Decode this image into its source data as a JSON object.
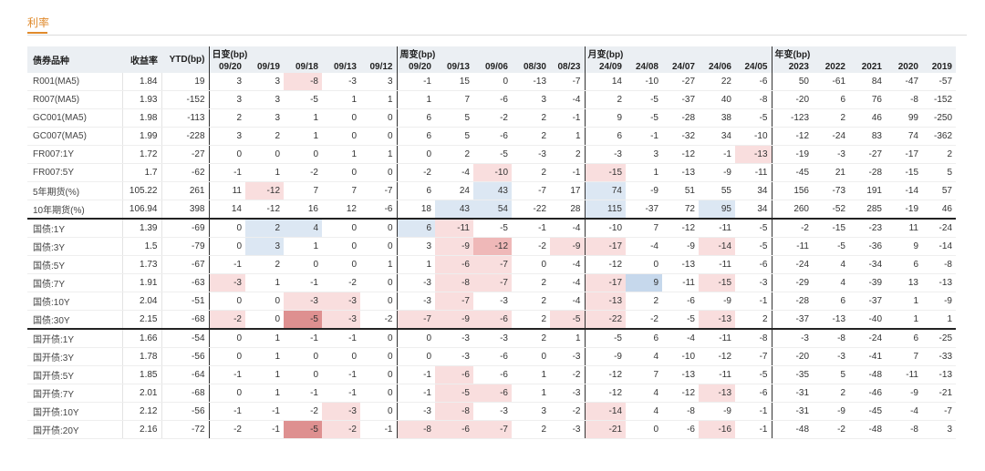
{
  "tab": {
    "label": "利率"
  },
  "headers": {
    "name": "债券品种",
    "yield": "收益率",
    "ytd": "YTD(bp)",
    "groups": [
      {
        "label": "日变(bp)",
        "cols": [
          "09/20",
          "09/19",
          "09/18",
          "09/13",
          "09/12"
        ]
      },
      {
        "label": "周变(bp)",
        "cols": [
          "09/20",
          "09/13",
          "09/06",
          "08/30",
          "08/23"
        ]
      },
      {
        "label": "月变(bp)",
        "cols": [
          "24/09",
          "24/08",
          "24/07",
          "24/06",
          "24/05"
        ]
      },
      {
        "label": "年变(bp)",
        "cols": [
          "2023",
          "2022",
          "2021",
          "2020",
          "2019"
        ]
      }
    ]
  },
  "colors": {
    "neg_light": "#f9dede",
    "neg_mid": "#efb8b8",
    "neg_dark": "#de9090",
    "pos_light": "#dce7f3",
    "pos_mid": "#c6d8ec",
    "accent": "#e08a2c"
  },
  "rows": [
    {
      "name": "R001(MA5)",
      "yield": "1.84",
      "ytd": "19",
      "vals": [
        "3",
        "3",
        "-8",
        "-3",
        "3",
        "-1",
        "15",
        "0",
        "-13",
        "-7",
        "14",
        "-10",
        "-27",
        "22",
        "-6",
        "50",
        "-61",
        "84",
        "-47",
        "-57"
      ],
      "hl": {
        "2": "r1"
      }
    },
    {
      "name": "R007(MA5)",
      "yield": "1.93",
      "ytd": "-152",
      "vals": [
        "3",
        "3",
        "-5",
        "1",
        "1",
        "1",
        "7",
        "-6",
        "3",
        "-4",
        "2",
        "-5",
        "-37",
        "40",
        "-8",
        "-20",
        "6",
        "76",
        "-8",
        "-152"
      ],
      "hl": {}
    },
    {
      "name": "GC001(MA5)",
      "yield": "1.98",
      "ytd": "-113",
      "vals": [
        "2",
        "3",
        "1",
        "0",
        "0",
        "6",
        "5",
        "-2",
        "2",
        "-1",
        "9",
        "-5",
        "-28",
        "38",
        "-5",
        "-123",
        "2",
        "46",
        "99",
        "-250"
      ],
      "hl": {}
    },
    {
      "name": "GC007(MA5)",
      "yield": "1.99",
      "ytd": "-228",
      "vals": [
        "3",
        "2",
        "1",
        "0",
        "0",
        "6",
        "5",
        "-6",
        "2",
        "1",
        "6",
        "-1",
        "-32",
        "34",
        "-10",
        "-12",
        "-24",
        "83",
        "74",
        "-362"
      ],
      "hl": {}
    },
    {
      "name": "FR007:1Y",
      "yield": "1.72",
      "ytd": "-27",
      "vals": [
        "0",
        "0",
        "0",
        "1",
        "1",
        "0",
        "2",
        "-5",
        "-3",
        "2",
        "-3",
        "3",
        "-12",
        "-1",
        "-13",
        "-19",
        "-3",
        "-27",
        "-17",
        "2"
      ],
      "hl": {
        "14": "r1"
      }
    },
    {
      "name": "FR007:5Y",
      "yield": "1.7",
      "ytd": "-62",
      "vals": [
        "-1",
        "1",
        "-2",
        "0",
        "0",
        "-2",
        "-4",
        "-10",
        "2",
        "-1",
        "-15",
        "1",
        "-13",
        "-9",
        "-11",
        "-45",
        "21",
        "-28",
        "-15",
        "5"
      ],
      "hl": {
        "7": "r1",
        "10": "r1"
      }
    },
    {
      "name": "5年期货(%)",
      "yield": "105.22",
      "ytd": "261",
      "vals": [
        "11",
        "-12",
        "7",
        "7",
        "-7",
        "6",
        "24",
        "43",
        "-7",
        "17",
        "74",
        "-9",
        "51",
        "55",
        "34",
        "156",
        "-73",
        "191",
        "-14",
        "57"
      ],
      "hl": {
        "1": "r1",
        "7": "b1",
        "10": "b1"
      }
    },
    {
      "name": "10年期货(%)",
      "yield": "106.94",
      "ytd": "398",
      "vals": [
        "14",
        "-12",
        "16",
        "12",
        "-6",
        "18",
        "43",
        "54",
        "-22",
        "28",
        "115",
        "-37",
        "72",
        "95",
        "34",
        "260",
        "-52",
        "285",
        "-19",
        "46"
      ],
      "hl": {
        "6": "b1",
        "7": "b1",
        "10": "b1",
        "13": "b1"
      }
    },
    {
      "name": "国债:1Y",
      "yield": "1.39",
      "ytd": "-69",
      "vals": [
        "0",
        "2",
        "4",
        "0",
        "0",
        "6",
        "-11",
        "-5",
        "-1",
        "-4",
        "-10",
        "7",
        "-12",
        "-11",
        "-5",
        "-2",
        "-15",
        "-23",
        "11",
        "-24"
      ],
      "hl": {
        "1": "b1",
        "2": "b1",
        "5": "b1",
        "6": "r1"
      },
      "sec": true
    },
    {
      "name": "国债:3Y",
      "yield": "1.5",
      "ytd": "-79",
      "vals": [
        "0",
        "3",
        "1",
        "0",
        "0",
        "3",
        "-9",
        "-12",
        "-2",
        "-9",
        "-17",
        "-4",
        "-9",
        "-14",
        "-5",
        "-11",
        "-5",
        "-36",
        "9",
        "-14"
      ],
      "hl": {
        "1": "b1",
        "6": "r1",
        "7": "r2",
        "9": "r1",
        "10": "r1",
        "13": "r1"
      }
    },
    {
      "name": "国债:5Y",
      "yield": "1.73",
      "ytd": "-67",
      "vals": [
        "-1",
        "2",
        "0",
        "0",
        "1",
        "1",
        "-6",
        "-7",
        "0",
        "-4",
        "-12",
        "0",
        "-13",
        "-11",
        "-6",
        "-24",
        "4",
        "-34",
        "6",
        "-8"
      ],
      "hl": {
        "6": "r1",
        "7": "r1"
      }
    },
    {
      "name": "国债:7Y",
      "yield": "1.91",
      "ytd": "-63",
      "vals": [
        "-3",
        "1",
        "-1",
        "-2",
        "0",
        "-3",
        "-8",
        "-7",
        "2",
        "-4",
        "-17",
        "9",
        "-11",
        "-15",
        "-3",
        "-29",
        "4",
        "-39",
        "13",
        "-13"
      ],
      "hl": {
        "0": "r1",
        "6": "r1",
        "7": "r1",
        "10": "r1",
        "11": "b2",
        "13": "r1"
      }
    },
    {
      "name": "国债:10Y",
      "yield": "2.04",
      "ytd": "-51",
      "vals": [
        "0",
        "0",
        "-3",
        "-3",
        "0",
        "-3",
        "-7",
        "-3",
        "2",
        "-4",
        "-13",
        "2",
        "-6",
        "-9",
        "-1",
        "-28",
        "6",
        "-37",
        "1",
        "-9"
      ],
      "hl": {
        "2": "r1",
        "3": "r1",
        "6": "r1",
        "10": "r1"
      }
    },
    {
      "name": "国债:30Y",
      "yield": "2.15",
      "ytd": "-68",
      "vals": [
        "-2",
        "0",
        "-5",
        "-3",
        "-2",
        "-7",
        "-9",
        "-6",
        "2",
        "-5",
        "-22",
        "-2",
        "-5",
        "-13",
        "2",
        "-37",
        "-13",
        "-40",
        "1",
        "1"
      ],
      "hl": {
        "0": "r1",
        "2": "r3",
        "3": "r1",
        "5": "r1",
        "6": "r1",
        "7": "r1",
        "9": "r1",
        "10": "r1",
        "13": "r1"
      }
    },
    {
      "name": "国开债:1Y",
      "yield": "1.66",
      "ytd": "-54",
      "vals": [
        "0",
        "1",
        "-1",
        "-1",
        "0",
        "0",
        "-3",
        "-3",
        "2",
        "1",
        "-5",
        "6",
        "-4",
        "-11",
        "-8",
        "-3",
        "-8",
        "-24",
        "6",
        "-25"
      ],
      "hl": {},
      "sec": true
    },
    {
      "name": "国开债:3Y",
      "yield": "1.78",
      "ytd": "-56",
      "vals": [
        "0",
        "1",
        "0",
        "0",
        "0",
        "0",
        "-3",
        "-6",
        "0",
        "-3",
        "-9",
        "4",
        "-10",
        "-12",
        "-7",
        "-20",
        "-3",
        "-41",
        "7",
        "-33"
      ],
      "hl": {}
    },
    {
      "name": "国开债:5Y",
      "yield": "1.85",
      "ytd": "-64",
      "vals": [
        "-1",
        "1",
        "0",
        "-1",
        "0",
        "-1",
        "-6",
        "-6",
        "1",
        "-2",
        "-12",
        "7",
        "-13",
        "-11",
        "-5",
        "-35",
        "5",
        "-48",
        "-11",
        "-13"
      ],
      "hl": {
        "6": "r1"
      }
    },
    {
      "name": "国开债:7Y",
      "yield": "2.01",
      "ytd": "-68",
      "vals": [
        "0",
        "1",
        "-1",
        "-1",
        "0",
        "-1",
        "-5",
        "-6",
        "1",
        "-3",
        "-12",
        "4",
        "-12",
        "-13",
        "-6",
        "-31",
        "2",
        "-46",
        "-9",
        "-21"
      ],
      "hl": {
        "6": "r1",
        "7": "r1",
        "13": "r1"
      }
    },
    {
      "name": "国开债:10Y",
      "yield": "2.12",
      "ytd": "-56",
      "vals": [
        "-1",
        "-1",
        "-2",
        "-3",
        "0",
        "-3",
        "-8",
        "-3",
        "3",
        "-2",
        "-14",
        "4",
        "-8",
        "-9",
        "-1",
        "-31",
        "-9",
        "-45",
        "-4",
        "-7"
      ],
      "hl": {
        "3": "r1",
        "6": "r1",
        "10": "r1"
      }
    },
    {
      "name": "国开债:20Y",
      "yield": "2.16",
      "ytd": "-72",
      "vals": [
        "-2",
        "-1",
        "-5",
        "-2",
        "-1",
        "-8",
        "-6",
        "-7",
        "2",
        "-3",
        "-21",
        "0",
        "-6",
        "-16",
        "-1",
        "-48",
        "-2",
        "-48",
        "-8",
        "3"
      ],
      "hl": {
        "2": "r3",
        "3": "r1",
        "5": "r1",
        "6": "r1",
        "7": "r1",
        "10": "r1",
        "13": "r1"
      }
    }
  ]
}
